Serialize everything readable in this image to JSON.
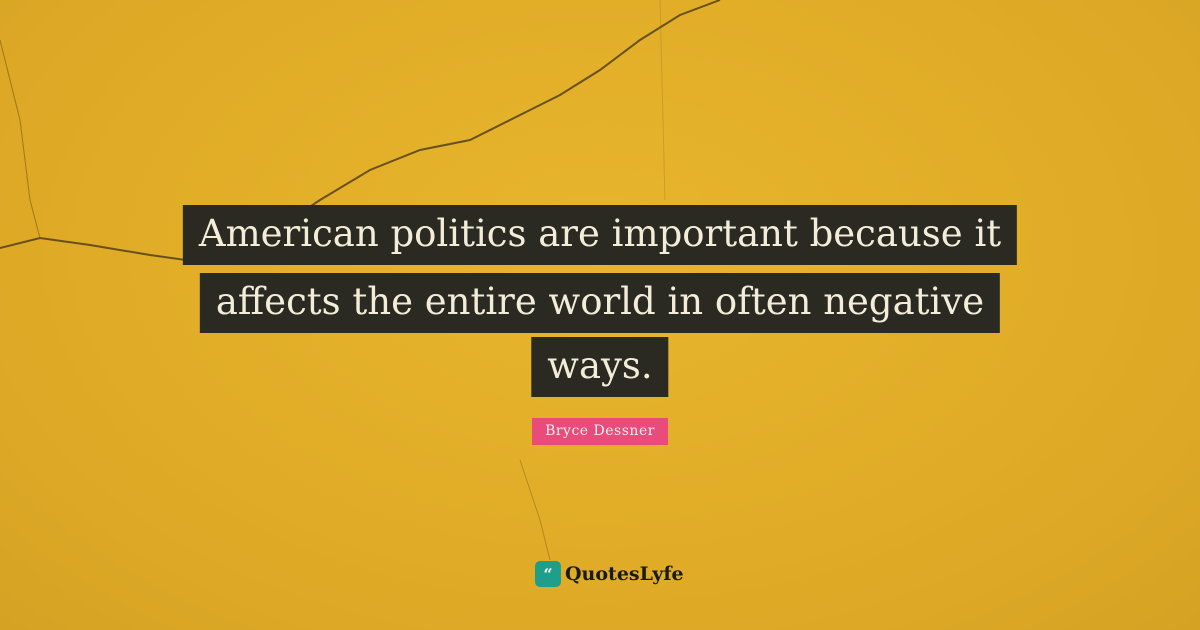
{
  "quote": {
    "lines": [
      "American politics are important because it",
      "affects the entire world in often negative",
      "ways."
    ]
  },
  "author": "Bryce Dessner",
  "brand": {
    "name": "QuotesLyfe",
    "icon": "quote-marks-icon",
    "icon_glyph": "“"
  },
  "colors": {
    "background": "#e4b02a",
    "quote_box": "#2b2a22",
    "author_badge": "#e94b7b",
    "logo": "#1f9e8c"
  }
}
